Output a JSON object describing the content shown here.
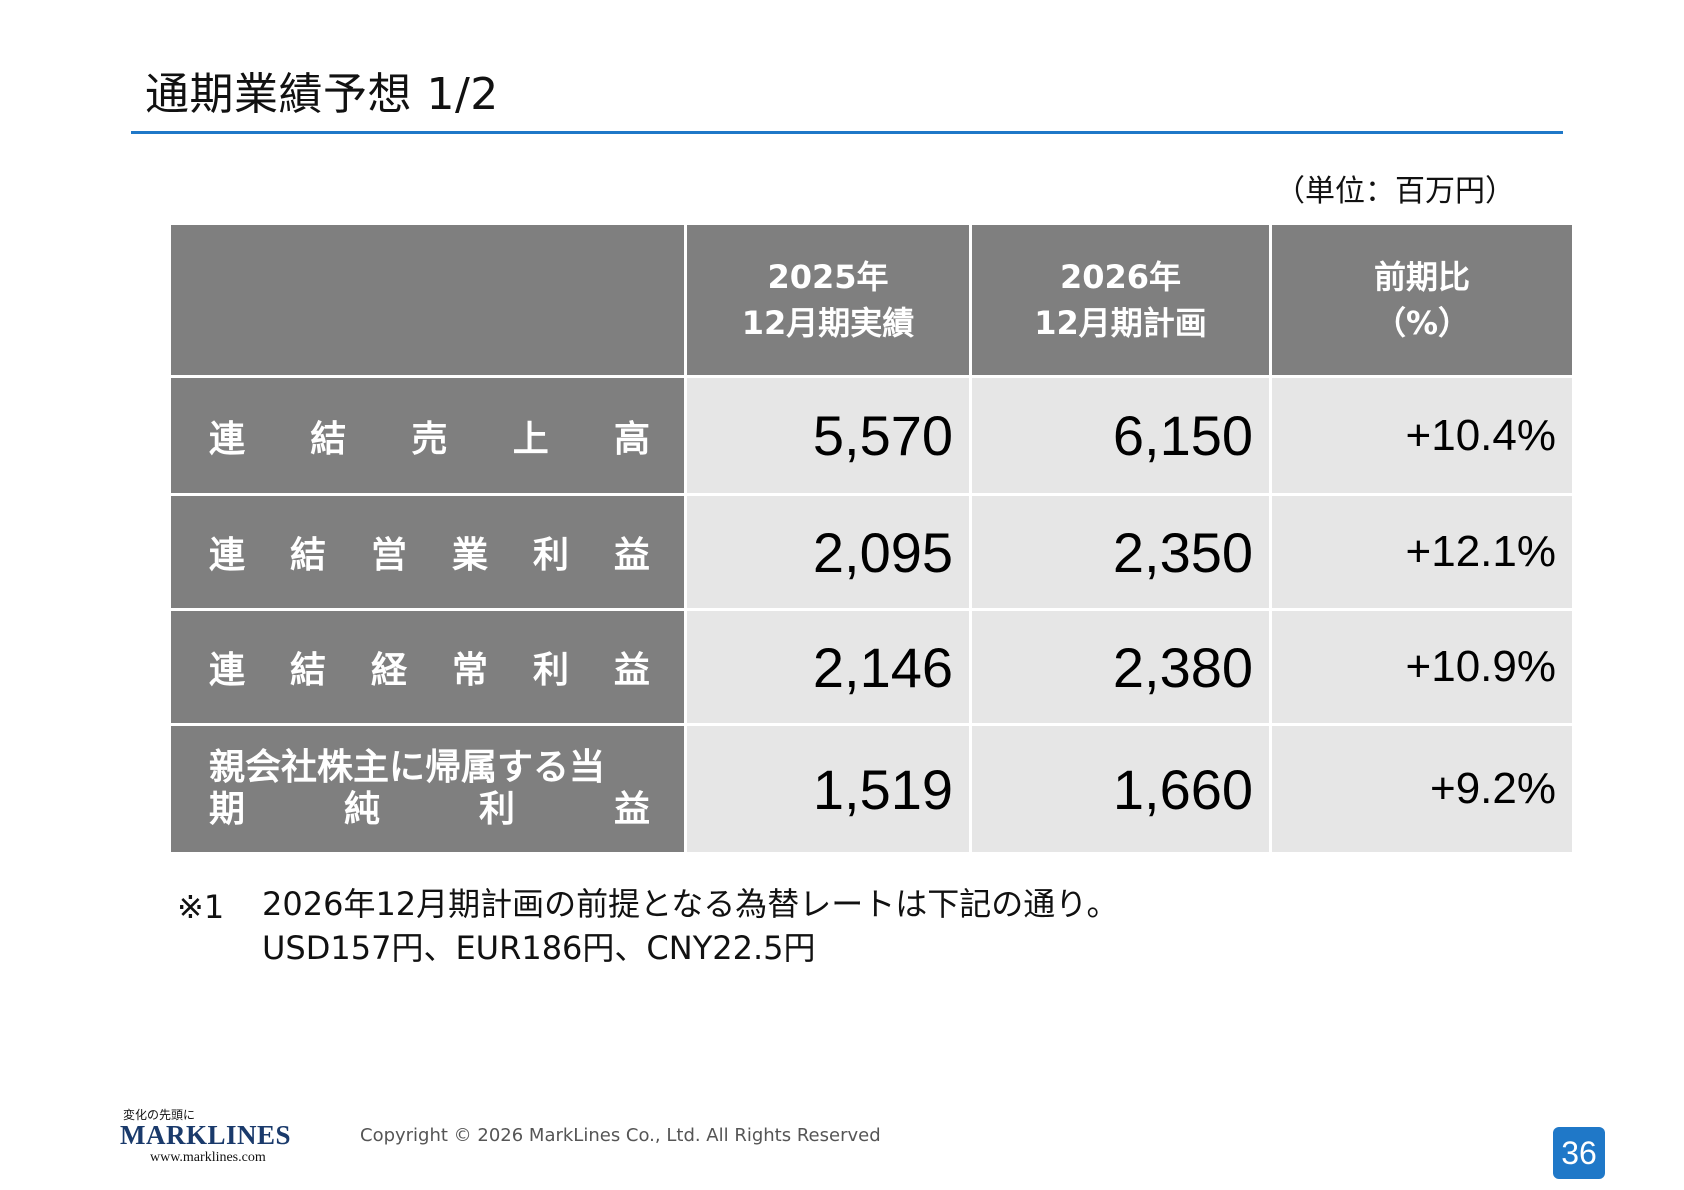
{
  "title": "通期業績予想 1/2",
  "unit_note": "（単位：百万円）",
  "table": {
    "headers": [
      {
        "line1": "",
        "line2": ""
      },
      {
        "line1": "2025年",
        "line2": "12月期実績"
      },
      {
        "line1": "2026年",
        "line2": "12月期計画"
      },
      {
        "line1": "前期比",
        "line2": "（%）"
      }
    ],
    "rows": [
      {
        "label_chars": [
          "連",
          "結",
          "売",
          "上",
          "高"
        ],
        "actual": "5,570",
        "plan": "6,150",
        "change": "+10.4%"
      },
      {
        "label_chars": [
          "連",
          "結",
          "営",
          "業",
          "利",
          "益"
        ],
        "actual": "2,095",
        "plan": "2,350",
        "change": "+12.1%"
      },
      {
        "label_chars": [
          "連",
          "結",
          "経",
          "常",
          "利",
          "益"
        ],
        "actual": "2,146",
        "plan": "2,380",
        "change": "+10.9%"
      },
      {
        "label_line1": "親会社株主に帰属する当",
        "label_line2_chars": [
          "期",
          "純",
          "利",
          "益"
        ],
        "actual": "1,519",
        "plan": "1,660",
        "change": "+9.2%"
      }
    ]
  },
  "footnote": {
    "mark": "※1",
    "line1": "2026年12月期計画の前提となる為替レートは下記の通り。",
    "line2": "USD157円、EUR186円、CNY22.5円"
  },
  "footer": {
    "logo_tagline": "変化の先頭に",
    "logo_name": "MARKLINES",
    "logo_url": "www.marklines.com",
    "copyright": "Copyright © 2026 MarkLines Co., Ltd. All Rights Reserved",
    "page_number": "36"
  },
  "colors": {
    "accent_blue": "#1f78c8",
    "header_gray": "#7f7f7f",
    "cell_gray": "#e6e6e6"
  }
}
